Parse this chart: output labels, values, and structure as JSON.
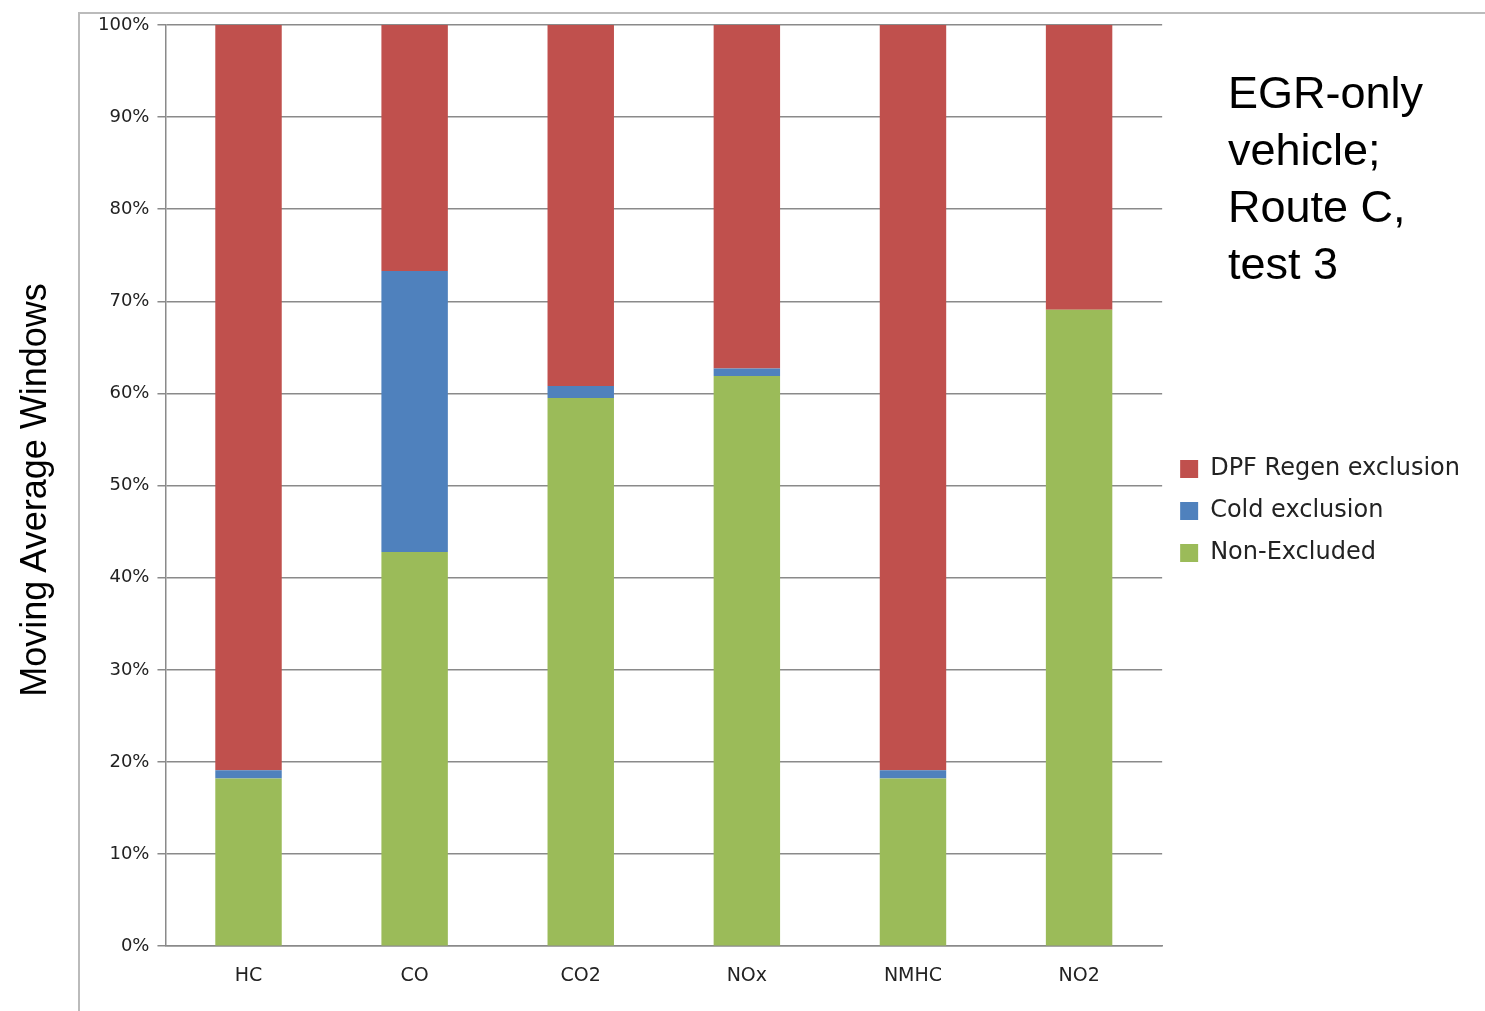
{
  "chart_data": {
    "type": "bar",
    "stacked": true,
    "ylabel": "Moving Average Windows",
    "categories": [
      "HC",
      "CO",
      "CO2",
      "NOx",
      "NMHC",
      "NO2"
    ],
    "series": [
      {
        "name": "Non-Excluded",
        "color": "#9bbb59",
        "values": [
          18.2,
          42.8,
          59.5,
          61.9,
          18.2,
          69.1
        ]
      },
      {
        "name": "Cold exclusion",
        "color": "#4f81bd",
        "values": [
          0.9,
          30.5,
          1.3,
          0.8,
          0.9,
          0
        ]
      },
      {
        "name": "DPF Regen exclusion",
        "color": "#c0504d",
        "values": [
          80.9,
          26.7,
          39.2,
          37.3,
          80.9,
          30.9
        ]
      }
    ],
    "ylim": [
      0,
      100
    ],
    "yticks": [
      {
        "value": 0,
        "label": "0%"
      },
      {
        "value": 10,
        "label": "10%"
      },
      {
        "value": 20,
        "label": "20%"
      },
      {
        "value": 30,
        "label": "30%"
      },
      {
        "value": 40,
        "label": "40%"
      },
      {
        "value": 50,
        "label": "50%"
      },
      {
        "value": 60,
        "label": "60%"
      },
      {
        "value": 70,
        "label": "70%"
      },
      {
        "value": 80,
        "label": "80%"
      },
      {
        "value": 90,
        "label": "90%"
      },
      {
        "value": 100,
        "label": "100%"
      }
    ],
    "grid": "y",
    "legend": "right",
    "annotations": [
      "EGR-only vehicle; Route C, test 3"
    ]
  }
}
